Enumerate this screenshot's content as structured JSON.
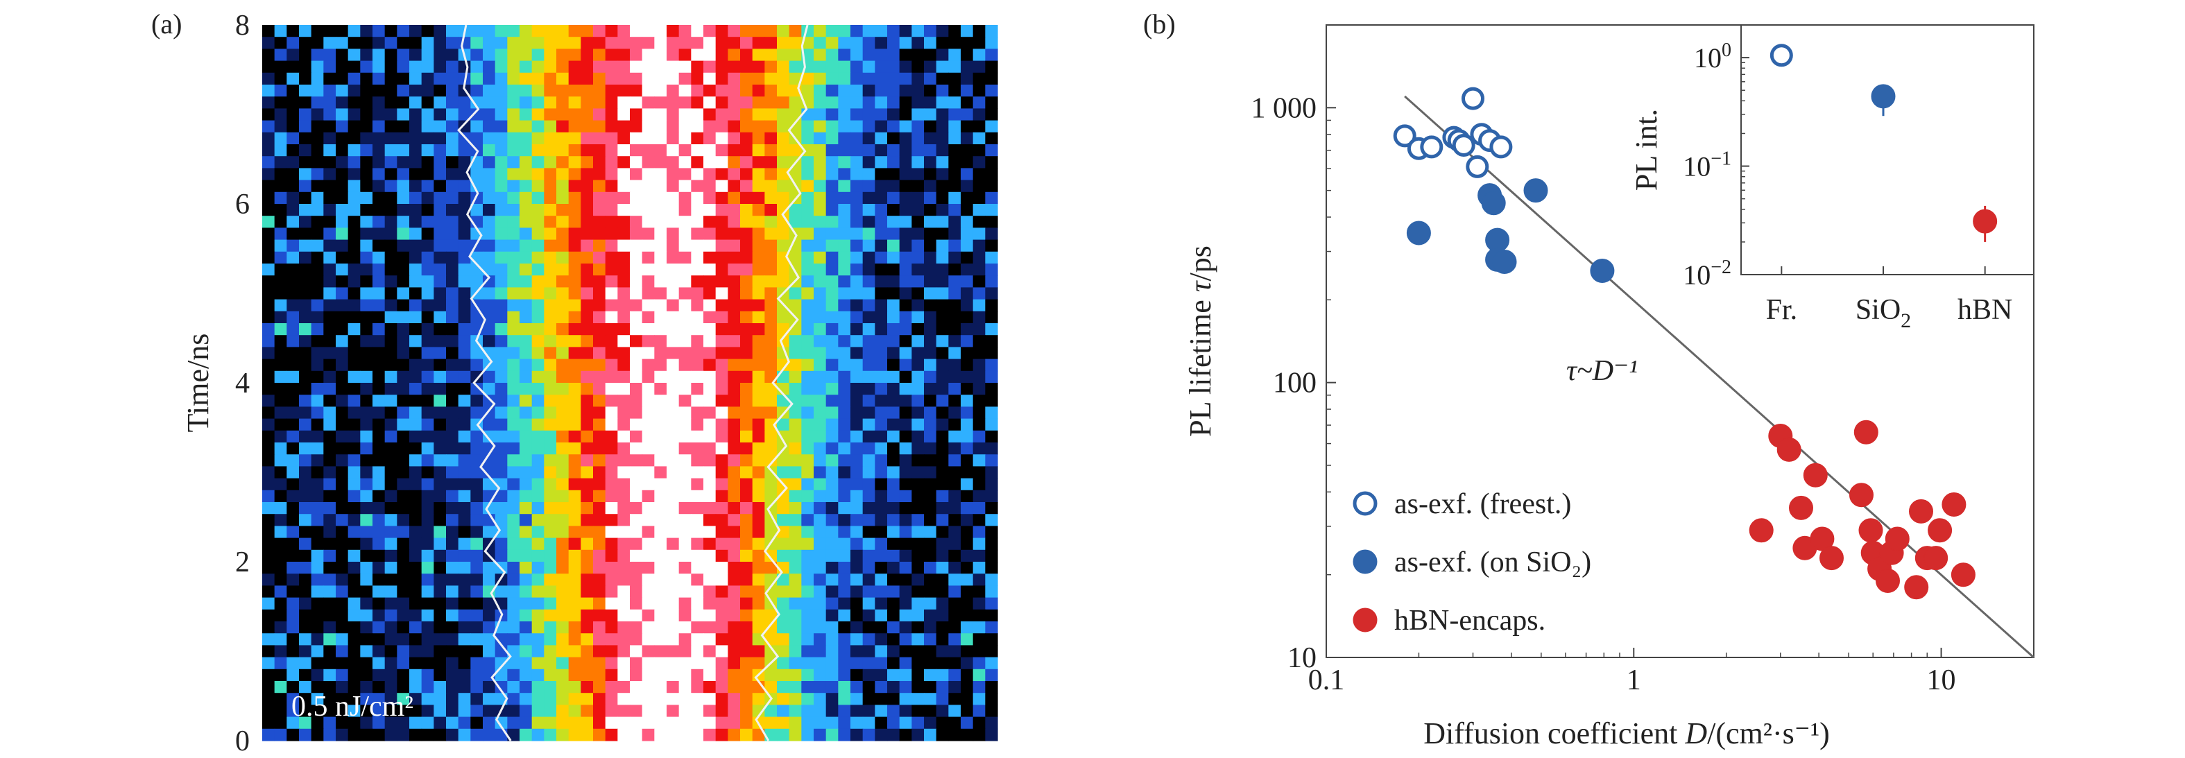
{
  "panel_a": {
    "label": "(a)",
    "ylabel": "Time/ns",
    "annotation": "0.5 nJ/cm²",
    "chart_data": {
      "type": "heatmap",
      "ylabel": "Time/ns",
      "ylim": [
        0,
        8
      ],
      "y_ticks": [
        "0",
        "2",
        "4",
        "6",
        "8"
      ],
      "annotation": "0.5 nJ/cm²",
      "colormap": [
        "#000000",
        "#0a1a5a",
        "#1e4fd0",
        "#2fb0ff",
        "#3fe0c0",
        "#c8e020",
        "#ffd000",
        "#ff7a00",
        "#ee1010",
        "#ff5a80",
        "#ffffff"
      ]
    }
  },
  "panel_b": {
    "label": "(b)",
    "chart_data": {
      "type": "scatter",
      "xlabel_text": "Diffusion coefficient ",
      "xlabel_var": "D",
      "xlabel_unit": "/(cm²·s⁻¹)",
      "ylabel_text": "PL lifetime ",
      "ylabel_var": "τ",
      "ylabel_unit": "/ps",
      "x_scale": "log",
      "y_scale": "log",
      "xlim": [
        0.1,
        20
      ],
      "ylim": [
        10,
        2000
      ],
      "x_ticks": [
        {
          "v": 0.1,
          "label": "0.1"
        },
        {
          "v": 1,
          "label": "1"
        },
        {
          "v": 10,
          "label": "10"
        }
      ],
      "y_ticks": [
        {
          "v": 10,
          "label": "10"
        },
        {
          "v": 100,
          "label": "100"
        },
        {
          "v": 1000,
          "label": "1 000"
        }
      ],
      "fit_annotation": "τ~D⁻¹",
      "fit_line": {
        "x": [
          0.18,
          20
        ],
        "y": [
          1100,
          10
        ]
      },
      "legend_position": "bottom-left",
      "series": [
        {
          "name": "as-exf. (freest.)",
          "marker": "open-circle",
          "color": "#2f64aa",
          "points": [
            [
              0.18,
              790
            ],
            [
              0.2,
              710
            ],
            [
              0.22,
              720
            ],
            [
              0.26,
              780
            ],
            [
              0.27,
              760
            ],
            [
              0.28,
              730
            ],
            [
              0.3,
              1080
            ],
            [
              0.31,
              610
            ],
            [
              0.32,
              800
            ],
            [
              0.34,
              760
            ],
            [
              0.37,
              720
            ]
          ]
        },
        {
          "name": "as-exf. (on SiO₂)",
          "marker": "filled-circle",
          "color": "#2f64aa",
          "points": [
            [
              0.2,
              350
            ],
            [
              0.34,
              480
            ],
            [
              0.35,
              450
            ],
            [
              0.36,
              330
            ],
            [
              0.36,
              280
            ],
            [
              0.38,
              275
            ],
            [
              0.48,
              500
            ],
            [
              0.79,
              255
            ]
          ]
        },
        {
          "name": "hBN-encaps.",
          "marker": "filled-circle",
          "color": "#d42b2b",
          "points": [
            [
              2.6,
              29
            ],
            [
              3.0,
              64
            ],
            [
              3.2,
              57
            ],
            [
              3.5,
              35
            ],
            [
              3.6,
              25
            ],
            [
              3.9,
              46
            ],
            [
              4.1,
              27
            ],
            [
              4.4,
              23
            ],
            [
              5.5,
              39
            ],
            [
              5.7,
              66
            ],
            [
              5.9,
              29
            ],
            [
              6.0,
              24
            ],
            [
              6.3,
              21
            ],
            [
              6.7,
              19
            ],
            [
              6.9,
              24
            ],
            [
              7.2,
              27
            ],
            [
              8.3,
              18
            ],
            [
              8.6,
              34
            ],
            [
              9.0,
              23
            ],
            [
              9.6,
              23
            ],
            [
              9.9,
              29
            ],
            [
              11.0,
              36
            ],
            [
              11.8,
              20
            ]
          ]
        }
      ],
      "inset": {
        "ylabel": "PL int.",
        "y_scale": "log",
        "ylim": [
          0.01,
          2
        ],
        "y_ticks": [
          {
            "v": 1,
            "base": "10",
            "exp": "0"
          },
          {
            "v": 0.1,
            "base": "10",
            "exp": "−1"
          },
          {
            "v": 0.01,
            "base": "10",
            "exp": "−2"
          }
        ],
        "categories": [
          {
            "label": "Fr.",
            "sub": "",
            "value": 1.05,
            "err_lo": 0.9,
            "err_hi": 1.15,
            "color": "#2f64aa",
            "marker": "open-circle"
          },
          {
            "label": "SiO",
            "sub": "2",
            "value": 0.44,
            "err_lo": 0.29,
            "err_hi": 0.55,
            "color": "#2f64aa",
            "marker": "filled-circle"
          },
          {
            "label": "hBN",
            "sub": "",
            "value": 0.031,
            "err_lo": 0.02,
            "err_hi": 0.043,
            "color": "#d42b2b",
            "marker": "filled-circle"
          }
        ]
      }
    }
  }
}
